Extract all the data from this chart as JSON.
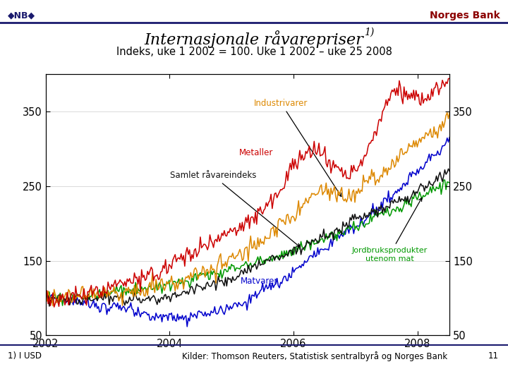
{
  "title_main": "Internasjonale råvarepriser",
  "title_super": "1)",
  "subtitle": "Indeks, uke 1 2002 = 100. Uke 1 2002 – uke 25 2008",
  "header_right": "Norges Bank",
  "footnote_left": "1) I USD",
  "footnote_right": "Kilder: Thomson Reuters, Statistisk sentralbyrå og Norges Bank",
  "footnote_num": "11",
  "ylim": [
    50,
    400
  ],
  "yticks": [
    50,
    150,
    250,
    350
  ],
  "xticks": [
    2002,
    2004,
    2006,
    2008
  ],
  "xlim_start": 2002.0,
  "xlim_end": 2008.52,
  "colors": {
    "metaller": "#cc0000",
    "industrivarer": "#dd8800",
    "samlet": "#111111",
    "matvarer": "#0000cc",
    "jordbruk": "#009900"
  },
  "label_colors": {
    "metaller": "#cc0000",
    "industrivarer": "#dd8800",
    "samlet": "#111111",
    "matvarer": "#0000cc",
    "jordbruk": "#009900"
  },
  "labels": {
    "industrivarer": "Industrivarer",
    "metaller": "Metaller",
    "samlet": "Samlet råvareindeks",
    "matvarer": "Matvarer",
    "jordbruk": "Jordbruksprodukter\nutenom mat"
  },
  "nb_color": "#1a1a6e",
  "norgesbank_color": "#8b0000",
  "bg_color": "#ffffff"
}
